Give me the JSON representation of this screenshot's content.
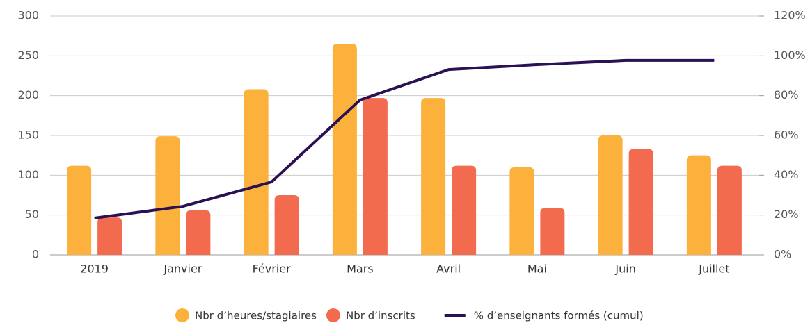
{
  "chart_data": {
    "type": "bar",
    "categories": [
      "2019",
      "Janvier",
      "Février",
      "Mars",
      "Avril",
      "Mai",
      "Juin",
      "Juillet"
    ],
    "series": [
      {
        "name": "Nbr d’heures/stagiaires",
        "color": "#fbb13c",
        "values": [
          112,
          149,
          208,
          265,
          197,
          110,
          150,
          125
        ]
      },
      {
        "name": "Nbr d’inscrits",
        "color": "#f26b4f",
        "values": [
          47,
          56,
          75,
          197,
          112,
          59,
          133,
          112
        ]
      },
      {
        "name": "% d’enseignants formés (cumul)",
        "color": "#2c1054",
        "type": "line",
        "axis": "y2",
        "values": [
          18.5,
          24.4,
          36.6,
          77.8,
          93.1,
          95.6,
          97.7,
          97.7
        ]
      }
    ],
    "ylim": [
      0,
      300
    ],
    "yticks": [
      0,
      50,
      100,
      150,
      200,
      250,
      300
    ],
    "y2lim": [
      0,
      120
    ],
    "y2ticks": [
      {
        "value": 0,
        "label": "0%"
      },
      {
        "value": 20,
        "label": "20%"
      },
      {
        "value": 40,
        "label": "40%"
      },
      {
        "value": 60,
        "label": "60%"
      },
      {
        "value": 80,
        "label": "80%"
      },
      {
        "value": 100,
        "label": "100%"
      },
      {
        "value": 120,
        "label": "120%"
      }
    ],
    "grid": true,
    "legend": "bottom"
  }
}
